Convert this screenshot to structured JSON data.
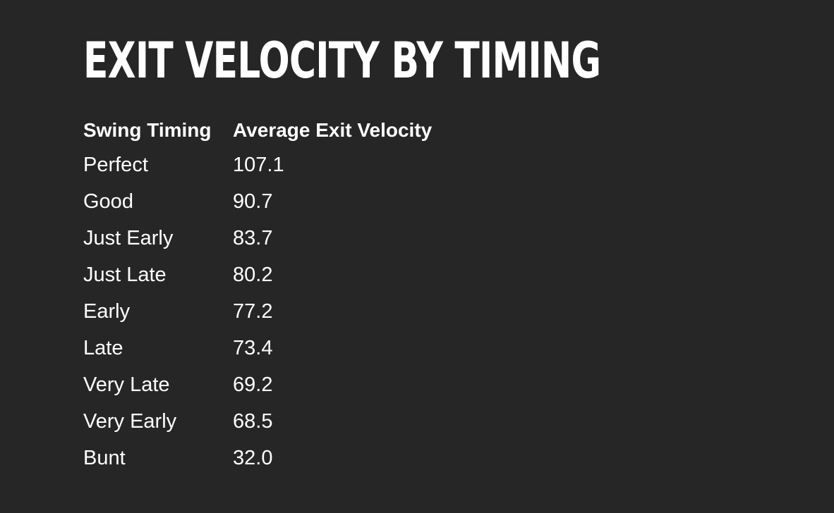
{
  "chart_data": {
    "type": "table",
    "title": "EXIT VELOCITY BY TIMING",
    "columns": [
      "Swing Timing",
      "Average Exit Velocity"
    ],
    "rows": [
      [
        "Perfect",
        "107.1"
      ],
      [
        "Good",
        "90.7"
      ],
      [
        "Just Early",
        "83.7"
      ],
      [
        "Just Late",
        "80.2"
      ],
      [
        "Early",
        "77.2"
      ],
      [
        "Late",
        "73.4"
      ],
      [
        "Very Late",
        "69.2"
      ],
      [
        "Very Early",
        "68.5"
      ],
      [
        "Bunt",
        "32.0"
      ]
    ]
  },
  "colors": {
    "background": "#262626",
    "text": "#ffffff"
  }
}
